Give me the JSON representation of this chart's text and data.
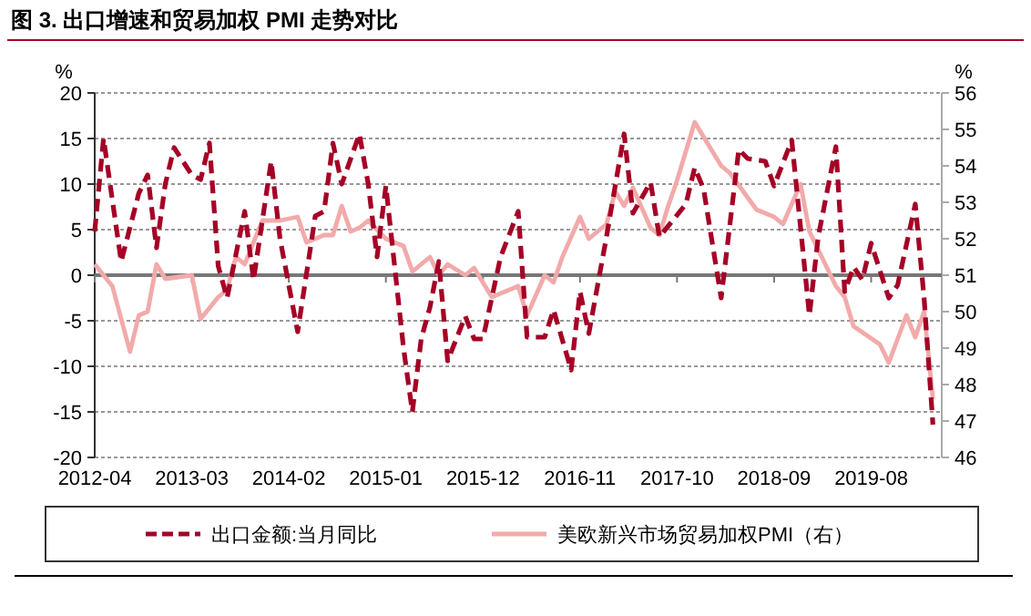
{
  "chart_data": {
    "type": "line",
    "title": "图 3. 出口增速和贸易加权 PMI 走势对比",
    "ylabel": "%",
    "y2label": "%",
    "xlim": [
      "2012-04",
      "2020-04"
    ],
    "xticks": [
      "2012-04",
      "2013-03",
      "2014-02",
      "2015-01",
      "2015-12",
      "2016-11",
      "2017-10",
      "2018-09",
      "2019-08"
    ],
    "ylim": [
      -20,
      20
    ],
    "yticks": [
      -20,
      -15,
      -10,
      -5,
      0,
      5,
      10,
      15,
      20
    ],
    "y2lim": [
      46,
      56
    ],
    "y2ticks": [
      46,
      47,
      48,
      49,
      50,
      51,
      52,
      53,
      54,
      55,
      56
    ],
    "grid": "y",
    "legend": "bottom",
    "series": [
      {
        "name": "出口金额:当月同比",
        "color": "#a50026",
        "line_style": "dashed",
        "x": [
          "2012-04",
          "2012-05",
          "2012-07",
          "2012-09",
          "2012-10",
          "2012-11",
          "2012-12",
          "2013-01",
          "2013-03",
          "2013-04",
          "2013-05",
          "2013-06",
          "2013-07",
          "2013-09",
          "2013-10",
          "2013-12",
          "2014-01",
          "2014-03",
          "2014-05",
          "2014-06",
          "2014-07",
          "2014-08",
          "2014-10",
          "2014-11",
          "2014-12",
          "2015-01",
          "2015-03",
          "2015-04",
          "2015-05",
          "2015-06",
          "2015-07",
          "2015-08",
          "2015-10",
          "2015-11",
          "2015-12",
          "2016-02",
          "2016-04",
          "2016-05",
          "2016-07",
          "2016-08",
          "2016-10",
          "2016-11",
          "2016-12",
          "2017-02",
          "2017-04",
          "2017-05",
          "2017-07",
          "2017-08",
          "2017-11",
          "2017-12",
          "2018-01",
          "2018-03",
          "2018-05",
          "2018-06",
          "2018-08",
          "2018-09",
          "2018-11",
          "2019-01",
          "2019-02",
          "2019-04",
          "2019-05",
          "2019-06",
          "2019-07",
          "2019-08",
          "2019-10",
          "2019-11",
          "2020-01",
          "2020-02",
          "2020-03"
        ],
        "values": [
          4.8,
          15,
          1.5,
          9,
          11,
          3,
          10,
          14,
          11,
          10.5,
          14.5,
          1,
          -2.5,
          7,
          -0.5,
          12.5,
          4,
          -6.2,
          6.5,
          7,
          14.5,
          10,
          15.5,
          10,
          2,
          9.8,
          -8,
          -15,
          -7,
          -3.5,
          1.5,
          -9.4,
          -4.5,
          -7,
          -7,
          2,
          7,
          -6.8,
          -6.8,
          -3.8,
          -10.4,
          -1.8,
          -6.4,
          4.2,
          15.5,
          6.8,
          10.2,
          4.2,
          7.8,
          11.8,
          9.5,
          -2.5,
          13.8,
          12.8,
          12.5,
          9.8,
          14.8,
          -4.4,
          4.2,
          14.1,
          -1.8,
          0.9,
          -0.5,
          3.5,
          -2.5,
          -1.1,
          7.8,
          -2.5,
          -16.4
        ]
      },
      {
        "name": "美欧新兴市场贸易加权PMI（右）",
        "color": "#f2aaaa",
        "line_style": "solid",
        "axis": "y2",
        "x": [
          "2012-04",
          "2012-06",
          "2012-08",
          "2012-09",
          "2012-10",
          "2012-11",
          "2012-12",
          "2013-03",
          "2013-04",
          "2013-06",
          "2013-07",
          "2013-08",
          "2013-09",
          "2013-11",
          "2014-01",
          "2014-03",
          "2014-04",
          "2014-06",
          "2014-07",
          "2014-08",
          "2014-09",
          "2014-10",
          "2014-11",
          "2015-01",
          "2015-03",
          "2015-04",
          "2015-06",
          "2015-07",
          "2015-08",
          "2015-10",
          "2015-11",
          "2016-01",
          "2016-03",
          "2016-04",
          "2016-05",
          "2016-07",
          "2016-08",
          "2016-09",
          "2016-11",
          "2016-12",
          "2017-02",
          "2017-03",
          "2017-04",
          "2017-05",
          "2017-07",
          "2017-08",
          "2017-09",
          "2017-10",
          "2017-12",
          "2018-03",
          "2018-04",
          "2018-07",
          "2018-09",
          "2018-10",
          "2018-12",
          "2019-01",
          "2019-04",
          "2019-05",
          "2019-06",
          "2019-09",
          "2019-10",
          "2019-12",
          "2020-01",
          "2020-02",
          "2020-03"
        ],
        "values": [
          51.3,
          50.7,
          48.9,
          49.9,
          50,
          51.3,
          50.9,
          51,
          49.8,
          50.4,
          50.6,
          51.5,
          51.3,
          52.5,
          52.5,
          52.6,
          51.9,
          52.1,
          52.1,
          52.9,
          52.2,
          52.3,
          52.5,
          52,
          51.8,
          51.1,
          51.5,
          51,
          51.3,
          51,
          51.2,
          50.4,
          50.6,
          50.7,
          49.9,
          51,
          50.8,
          51.5,
          52.6,
          52,
          52.4,
          53.3,
          52.9,
          53.4,
          52.3,
          52.1,
          52.9,
          53.6,
          55.2,
          54,
          53.8,
          52.8,
          52.6,
          52.4,
          53.5,
          52.2,
          50.7,
          50.4,
          49.6,
          49.1,
          48.6,
          49.9,
          49.3,
          50,
          47.6
        ]
      }
    ]
  }
}
